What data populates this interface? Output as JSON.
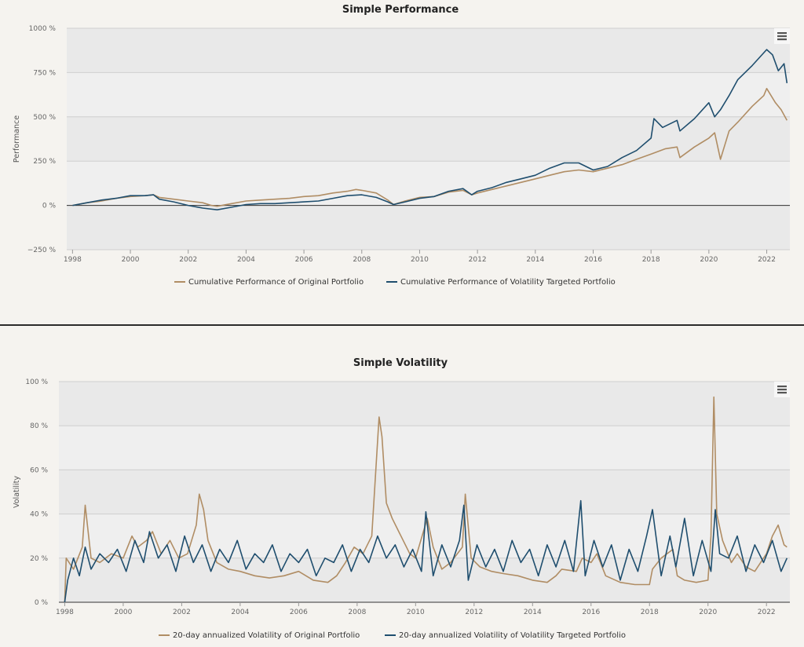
{
  "colors": {
    "original": "#b08d64",
    "targeted": "#1f4e6e",
    "plot_bg": "#e9e9e9",
    "plot_band": "#efefef",
    "grid": "#cfcfcf",
    "zero_line": "#333333",
    "page_bg": "#f5f3ef"
  },
  "menu_icon": "hamburger-menu-icon",
  "chart_data": [
    {
      "id": "perf",
      "type": "line",
      "title": "Simple Performance",
      "xlabel": "",
      "ylabel": "Performance",
      "xlim": [
        1997.8,
        2022.8
      ],
      "ylim": [
        -250,
        1000
      ],
      "x_ticks": [
        1998,
        2000,
        2002,
        2004,
        2006,
        2008,
        2010,
        2012,
        2014,
        2016,
        2018,
        2020,
        2022
      ],
      "x_tick_labels": [
        "1998",
        "2000",
        "2002",
        "2004",
        "2006",
        "2008",
        "2010",
        "2012",
        "2014",
        "2016",
        "2018",
        "2020",
        "2022"
      ],
      "y_ticks": [
        -250,
        0,
        250,
        500,
        750,
        1000
      ],
      "y_tick_labels": [
        "−250 %",
        "0 %",
        "250 %",
        "500 %",
        "750 %",
        "1000 %"
      ],
      "grid": true,
      "legend_position": "bottom-center",
      "series": [
        {
          "name": "Cumulative Performance of Original Portfolio",
          "color_key": "original",
          "x": [
            1998.0,
            1998.5,
            1999.0,
            1999.5,
            2000.0,
            2000.5,
            2000.8,
            2001.0,
            2001.5,
            2002.0,
            2002.5,
            2002.8,
            2003.0,
            2003.5,
            2004.0,
            2004.5,
            2005.0,
            2005.5,
            2006.0,
            2006.5,
            2007.0,
            2007.5,
            2007.8,
            2008.0,
            2008.5,
            2008.9,
            2009.1,
            2009.5,
            2010.0,
            2010.5,
            2011.0,
            2011.5,
            2011.8,
            2012.0,
            2012.5,
            2013.0,
            2013.5,
            2014.0,
            2014.5,
            2015.0,
            2015.5,
            2016.0,
            2016.5,
            2017.0,
            2017.5,
            2018.0,
            2018.5,
            2018.9,
            2019.0,
            2019.5,
            2020.0,
            2020.2,
            2020.4,
            2020.7,
            2021.0,
            2021.5,
            2021.9,
            2022.0,
            2022.3,
            2022.5,
            2022.7
          ],
          "y": [
            0,
            15,
            25,
            40,
            50,
            55,
            60,
            45,
            35,
            25,
            15,
            0,
            -5,
            10,
            25,
            30,
            35,
            40,
            50,
            55,
            70,
            80,
            90,
            85,
            70,
            30,
            5,
            25,
            45,
            50,
            75,
            85,
            60,
            70,
            90,
            110,
            130,
            150,
            170,
            190,
            200,
            190,
            210,
            230,
            260,
            290,
            320,
            330,
            270,
            330,
            380,
            410,
            260,
            420,
            470,
            560,
            620,
            660,
            580,
            540,
            480
          ]
        },
        {
          "name": "Cumulative Performance of Volatility Targeted Portfolio",
          "color_key": "targeted",
          "x": [
            1998.0,
            1998.5,
            1999.0,
            1999.5,
            2000.0,
            2000.5,
            2000.8,
            2001.0,
            2001.5,
            2002.0,
            2002.5,
            2003.0,
            2003.5,
            2004.0,
            2004.5,
            2005.0,
            2005.5,
            2006.0,
            2006.5,
            2007.0,
            2007.5,
            2008.0,
            2008.5,
            2008.9,
            2009.1,
            2009.5,
            2010.0,
            2010.5,
            2011.0,
            2011.5,
            2011.8,
            2012.0,
            2012.5,
            2013.0,
            2013.5,
            2014.0,
            2014.5,
            2015.0,
            2015.5,
            2016.0,
            2016.5,
            2017.0,
            2017.5,
            2018.0,
            2018.1,
            2018.4,
            2018.9,
            2019.0,
            2019.5,
            2020.0,
            2020.2,
            2020.4,
            2020.7,
            2021.0,
            2021.5,
            2022.0,
            2022.2,
            2022.4,
            2022.6,
            2022.7
          ],
          "y": [
            0,
            15,
            30,
            40,
            55,
            55,
            60,
            35,
            20,
            0,
            -15,
            -25,
            -10,
            5,
            10,
            10,
            15,
            20,
            25,
            40,
            55,
            60,
            45,
            20,
            5,
            20,
            40,
            50,
            80,
            95,
            60,
            80,
            100,
            130,
            150,
            170,
            210,
            240,
            240,
            200,
            220,
            270,
            310,
            380,
            490,
            440,
            480,
            420,
            490,
            580,
            500,
            540,
            620,
            710,
            790,
            880,
            850,
            760,
            800,
            690
          ]
        }
      ]
    },
    {
      "id": "vol",
      "type": "line",
      "title": "Simple Volatility",
      "xlabel": "",
      "ylabel": "Volatility",
      "xlim": [
        1997.8,
        2022.8
      ],
      "ylim": [
        0,
        100
      ],
      "x_ticks": [
        1998,
        2000,
        2002,
        2004,
        2006,
        2008,
        2010,
        2012,
        2014,
        2016,
        2018,
        2020,
        2022
      ],
      "x_tick_labels": [
        "1998",
        "2000",
        "2002",
        "2004",
        "2006",
        "2008",
        "2010",
        "2012",
        "2014",
        "2016",
        "2018",
        "2020",
        "2022"
      ],
      "y_ticks": [
        0,
        20,
        40,
        60,
        80,
        100
      ],
      "y_tick_labels": [
        "0 %",
        "20 %",
        "40 %",
        "60 %",
        "80 %",
        "100 %"
      ],
      "grid": true,
      "legend_position": "bottom-center",
      "series": [
        {
          "name": "20-day annualized Volatility of Original Portfolio",
          "color_key": "original",
          "x": [
            1998.0,
            1998.05,
            1998.3,
            1998.6,
            1998.7,
            1998.9,
            1999.2,
            1999.6,
            2000.0,
            2000.3,
            2000.5,
            2000.8,
            2001.0,
            2001.3,
            2001.6,
            2001.9,
            2002.2,
            2002.5,
            2002.6,
            2002.75,
            2002.9,
            2003.2,
            2003.6,
            2004.0,
            2004.5,
            2005.0,
            2005.5,
            2006.0,
            2006.5,
            2007.0,
            2007.3,
            2007.6,
            2007.9,
            2008.2,
            2008.5,
            2008.75,
            2008.85,
            2009.0,
            2009.2,
            2009.5,
            2009.8,
            2010.0,
            2010.4,
            2010.6,
            2010.9,
            2011.2,
            2011.6,
            2011.7,
            2011.9,
            2012.2,
            2012.6,
            2013.0,
            2013.5,
            2014.0,
            2014.5,
            2014.8,
            2015.0,
            2015.5,
            2015.7,
            2016.0,
            2016.2,
            2016.5,
            2017.0,
            2017.5,
            2018.0,
            2018.1,
            2018.4,
            2018.8,
            2018.95,
            2019.2,
            2019.6,
            2020.0,
            2020.1,
            2020.2,
            2020.3,
            2020.5,
            2020.8,
            2021.0,
            2021.3,
            2021.6,
            2022.0,
            2022.2,
            2022.4,
            2022.6,
            2022.7
          ],
          "y": [
            0,
            20,
            15,
            25,
            44,
            20,
            18,
            22,
            20,
            30,
            25,
            28,
            32,
            22,
            28,
            20,
            22,
            35,
            49,
            42,
            28,
            18,
            15,
            14,
            12,
            11,
            12,
            14,
            10,
            9,
            12,
            18,
            25,
            22,
            30,
            84,
            75,
            45,
            38,
            30,
            22,
            20,
            38,
            25,
            15,
            18,
            25,
            49,
            20,
            16,
            14,
            13,
            12,
            10,
            9,
            12,
            15,
            14,
            20,
            18,
            22,
            12,
            9,
            8,
            8,
            15,
            20,
            24,
            12,
            10,
            9,
            10,
            30,
            93,
            40,
            28,
            18,
            22,
            16,
            14,
            22,
            30,
            35,
            26,
            25
          ]
        },
        {
          "name": "20-day annualized Volatility of Volatility Targeted Portfolio",
          "color_key": "targeted",
          "x": [
            1998.0,
            1998.1,
            1998.3,
            1998.5,
            1998.7,
            1998.9,
            1999.2,
            1999.5,
            1999.8,
            2000.1,
            2000.4,
            2000.7,
            2000.9,
            2001.2,
            2001.5,
            2001.8,
            2002.1,
            2002.4,
            2002.7,
            2003.0,
            2003.3,
            2003.6,
            2003.9,
            2004.2,
            2004.5,
            2004.8,
            2005.1,
            2005.4,
            2005.7,
            2006.0,
            2006.3,
            2006.6,
            2006.9,
            2007.2,
            2007.5,
            2007.8,
            2008.1,
            2008.4,
            2008.7,
            2009.0,
            2009.3,
            2009.6,
            2009.9,
            2010.2,
            2010.35,
            2010.6,
            2010.9,
            2011.2,
            2011.5,
            2011.65,
            2011.8,
            2012.1,
            2012.4,
            2012.7,
            2013.0,
            2013.3,
            2013.6,
            2013.9,
            2014.2,
            2014.5,
            2014.8,
            2015.1,
            2015.4,
            2015.65,
            2015.8,
            2016.1,
            2016.4,
            2016.7,
            2017.0,
            2017.3,
            2017.6,
            2017.9,
            2018.1,
            2018.4,
            2018.7,
            2018.9,
            2019.2,
            2019.5,
            2019.8,
            2020.1,
            2020.25,
            2020.4,
            2020.7,
            2021.0,
            2021.3,
            2021.6,
            2021.9,
            2022.2,
            2022.5,
            2022.7
          ],
          "y": [
            0,
            10,
            20,
            12,
            25,
            15,
            22,
            18,
            24,
            14,
            28,
            18,
            32,
            20,
            26,
            14,
            30,
            18,
            26,
            14,
            24,
            18,
            28,
            15,
            22,
            18,
            26,
            14,
            22,
            18,
            24,
            12,
            20,
            18,
            26,
            14,
            24,
            18,
            30,
            20,
            26,
            16,
            24,
            14,
            41,
            12,
            26,
            16,
            28,
            44,
            10,
            26,
            16,
            24,
            14,
            28,
            18,
            24,
            12,
            26,
            16,
            28,
            14,
            46,
            12,
            28,
            16,
            26,
            10,
            24,
            14,
            30,
            42,
            12,
            30,
            16,
            38,
            12,
            28,
            14,
            42,
            22,
            20,
            30,
            14,
            26,
            18,
            28,
            14,
            20
          ]
        }
      ]
    }
  ]
}
